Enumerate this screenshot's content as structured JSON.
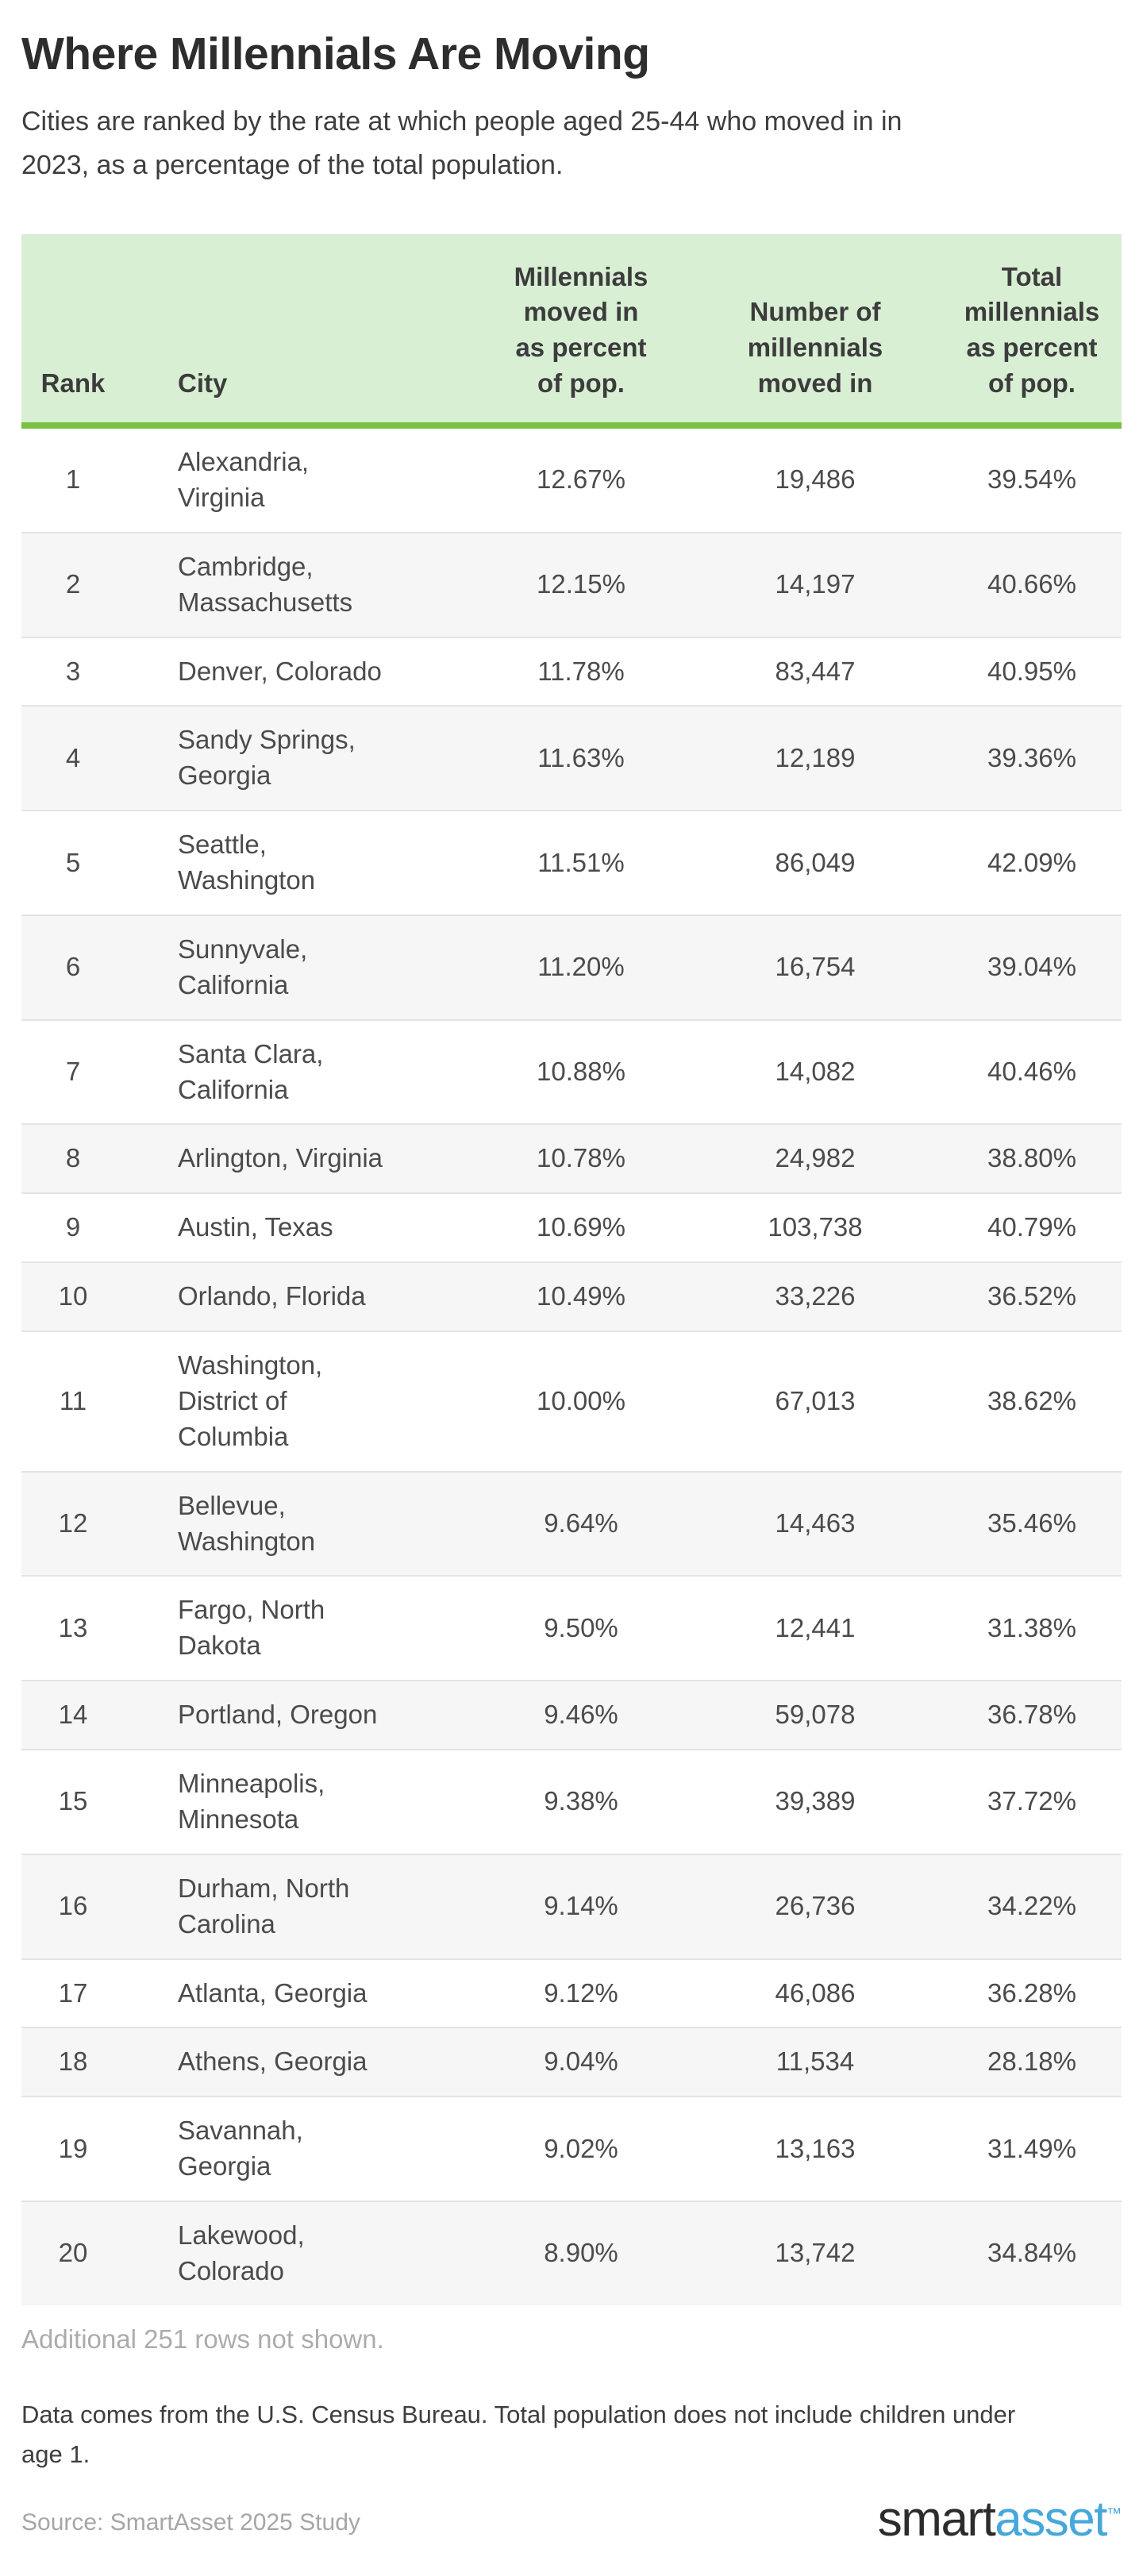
{
  "page": {
    "title": "Where Millennials Are Moving",
    "subtitle": "Cities are ranked by the rate at which people aged 25-44 who moved in in\n2023, as a percentage of the total population.",
    "additional_note": "Additional 251 rows not shown.",
    "footnote": "Data comes from the U.S. Census Bureau. Total population does not include children under\nage 1.",
    "source": "Source: SmartAsset 2025 Study",
    "logo": {
      "smart": "smart",
      "asset": "asset",
      "tm": "™"
    }
  },
  "colors": {
    "header_bg": "#d9efd4",
    "header_border_green": "#79c043",
    "stripe_gray": "#f6f6f6",
    "row_separator": "#e4e4e4",
    "title_text": "#2d2d2d",
    "body_text": "#4b4b4b",
    "muted_text": "#acacac",
    "logo_blue": "#46a7db"
  },
  "table": {
    "headers": [
      "Rank",
      "City",
      "Millennials\nmoved in\nas percent\nof pop.",
      "Number of\nmillennials\nmoved in",
      "Total\nmillennials\nas percent\nof pop."
    ],
    "rows": [
      {
        "rank": "1",
        "city": "Alexandria,\nVirginia",
        "pct_moved": "12.67%",
        "moved_in": "19,486",
        "pct_total": "39.54%"
      },
      {
        "rank": "2",
        "city": "Cambridge,\nMassachusetts",
        "pct_moved": "12.15%",
        "moved_in": "14,197",
        "pct_total": "40.66%"
      },
      {
        "rank": "3",
        "city": "Denver, Colorado",
        "pct_moved": "11.78%",
        "moved_in": "83,447",
        "pct_total": "40.95%"
      },
      {
        "rank": "4",
        "city": "Sandy Springs,\nGeorgia",
        "pct_moved": "11.63%",
        "moved_in": "12,189",
        "pct_total": "39.36%"
      },
      {
        "rank": "5",
        "city": "Seattle,\nWashington",
        "pct_moved": "11.51%",
        "moved_in": "86,049",
        "pct_total": "42.09%"
      },
      {
        "rank": "6",
        "city": "Sunnyvale,\nCalifornia",
        "pct_moved": "11.20%",
        "moved_in": "16,754",
        "pct_total": "39.04%"
      },
      {
        "rank": "7",
        "city": "Santa Clara,\nCalifornia",
        "pct_moved": "10.88%",
        "moved_in": "14,082",
        "pct_total": "40.46%"
      },
      {
        "rank": "8",
        "city": "Arlington, Virginia",
        "pct_moved": "10.78%",
        "moved_in": "24,982",
        "pct_total": "38.80%"
      },
      {
        "rank": "9",
        "city": "Austin, Texas",
        "pct_moved": "10.69%",
        "moved_in": "103,738",
        "pct_total": "40.79%"
      },
      {
        "rank": "10",
        "city": "Orlando, Florida",
        "pct_moved": "10.49%",
        "moved_in": "33,226",
        "pct_total": "36.52%"
      },
      {
        "rank": "11",
        "city": "Washington,\nDistrict of\nColumbia",
        "pct_moved": "10.00%",
        "moved_in": "67,013",
        "pct_total": "38.62%"
      },
      {
        "rank": "12",
        "city": "Bellevue,\nWashington",
        "pct_moved": "9.64%",
        "moved_in": "14,463",
        "pct_total": "35.46%"
      },
      {
        "rank": "13",
        "city": "Fargo, North\nDakota",
        "pct_moved": "9.50%",
        "moved_in": "12,441",
        "pct_total": "31.38%"
      },
      {
        "rank": "14",
        "city": "Portland, Oregon",
        "pct_moved": "9.46%",
        "moved_in": "59,078",
        "pct_total": "36.78%"
      },
      {
        "rank": "15",
        "city": "Minneapolis,\nMinnesota",
        "pct_moved": "9.38%",
        "moved_in": "39,389",
        "pct_total": "37.72%"
      },
      {
        "rank": "16",
        "city": "Durham, North\nCarolina",
        "pct_moved": "9.14%",
        "moved_in": "26,736",
        "pct_total": "34.22%"
      },
      {
        "rank": "17",
        "city": "Atlanta, Georgia",
        "pct_moved": "9.12%",
        "moved_in": "46,086",
        "pct_total": "36.28%"
      },
      {
        "rank": "18",
        "city": "Athens, Georgia",
        "pct_moved": "9.04%",
        "moved_in": "11,534",
        "pct_total": "28.18%"
      },
      {
        "rank": "19",
        "city": "Savannah,\nGeorgia",
        "pct_moved": "9.02%",
        "moved_in": "13,163",
        "pct_total": "31.49%"
      },
      {
        "rank": "20",
        "city": "Lakewood,\nColorado",
        "pct_moved": "8.90%",
        "moved_in": "13,742",
        "pct_total": "34.84%"
      }
    ]
  },
  "chart_data": {
    "type": "table",
    "title": "Where Millennials Are Moving",
    "columns": [
      "Rank",
      "City",
      "Millennials moved in as percent of pop.",
      "Number of millennials moved in",
      "Total millennials as percent of pop."
    ],
    "rows": [
      [
        1,
        "Alexandria, Virginia",
        "12.67%",
        19486,
        "39.54%"
      ],
      [
        2,
        "Cambridge, Massachusetts",
        "12.15%",
        14197,
        "40.66%"
      ],
      [
        3,
        "Denver, Colorado",
        "11.78%",
        83447,
        "40.95%"
      ],
      [
        4,
        "Sandy Springs, Georgia",
        "11.63%",
        12189,
        "39.36%"
      ],
      [
        5,
        "Seattle, Washington",
        "11.51%",
        86049,
        "42.09%"
      ],
      [
        6,
        "Sunnyvale, California",
        "11.20%",
        16754,
        "39.04%"
      ],
      [
        7,
        "Santa Clara, California",
        "10.88%",
        14082,
        "40.46%"
      ],
      [
        8,
        "Arlington, Virginia",
        "10.78%",
        24982,
        "38.80%"
      ],
      [
        9,
        "Austin, Texas",
        "10.69%",
        103738,
        "40.79%"
      ],
      [
        10,
        "Orlando, Florida",
        "10.49%",
        33226,
        "36.52%"
      ],
      [
        11,
        "Washington, District of Columbia",
        "10.00%",
        67013,
        "38.62%"
      ],
      [
        12,
        "Bellevue, Washington",
        "9.64%",
        14463,
        "35.46%"
      ],
      [
        13,
        "Fargo, North Dakota",
        "9.50%",
        12441,
        "31.38%"
      ],
      [
        14,
        "Portland, Oregon",
        "9.46%",
        59078,
        "36.78%"
      ],
      [
        15,
        "Minneapolis, Minnesota",
        "9.38%",
        39389,
        "37.72%"
      ],
      [
        16,
        "Durham, North Carolina",
        "9.14%",
        26736,
        "34.22%"
      ],
      [
        17,
        "Atlanta, Georgia",
        "9.12%",
        46086,
        "36.28%"
      ],
      [
        18,
        "Athens, Georgia",
        "9.04%",
        11534,
        "28.18%"
      ],
      [
        19,
        "Savannah, Georgia",
        "9.02%",
        13163,
        "31.49%"
      ],
      [
        20,
        "Lakewood, Colorado",
        "8.90%",
        13742,
        "34.84%"
      ]
    ]
  }
}
